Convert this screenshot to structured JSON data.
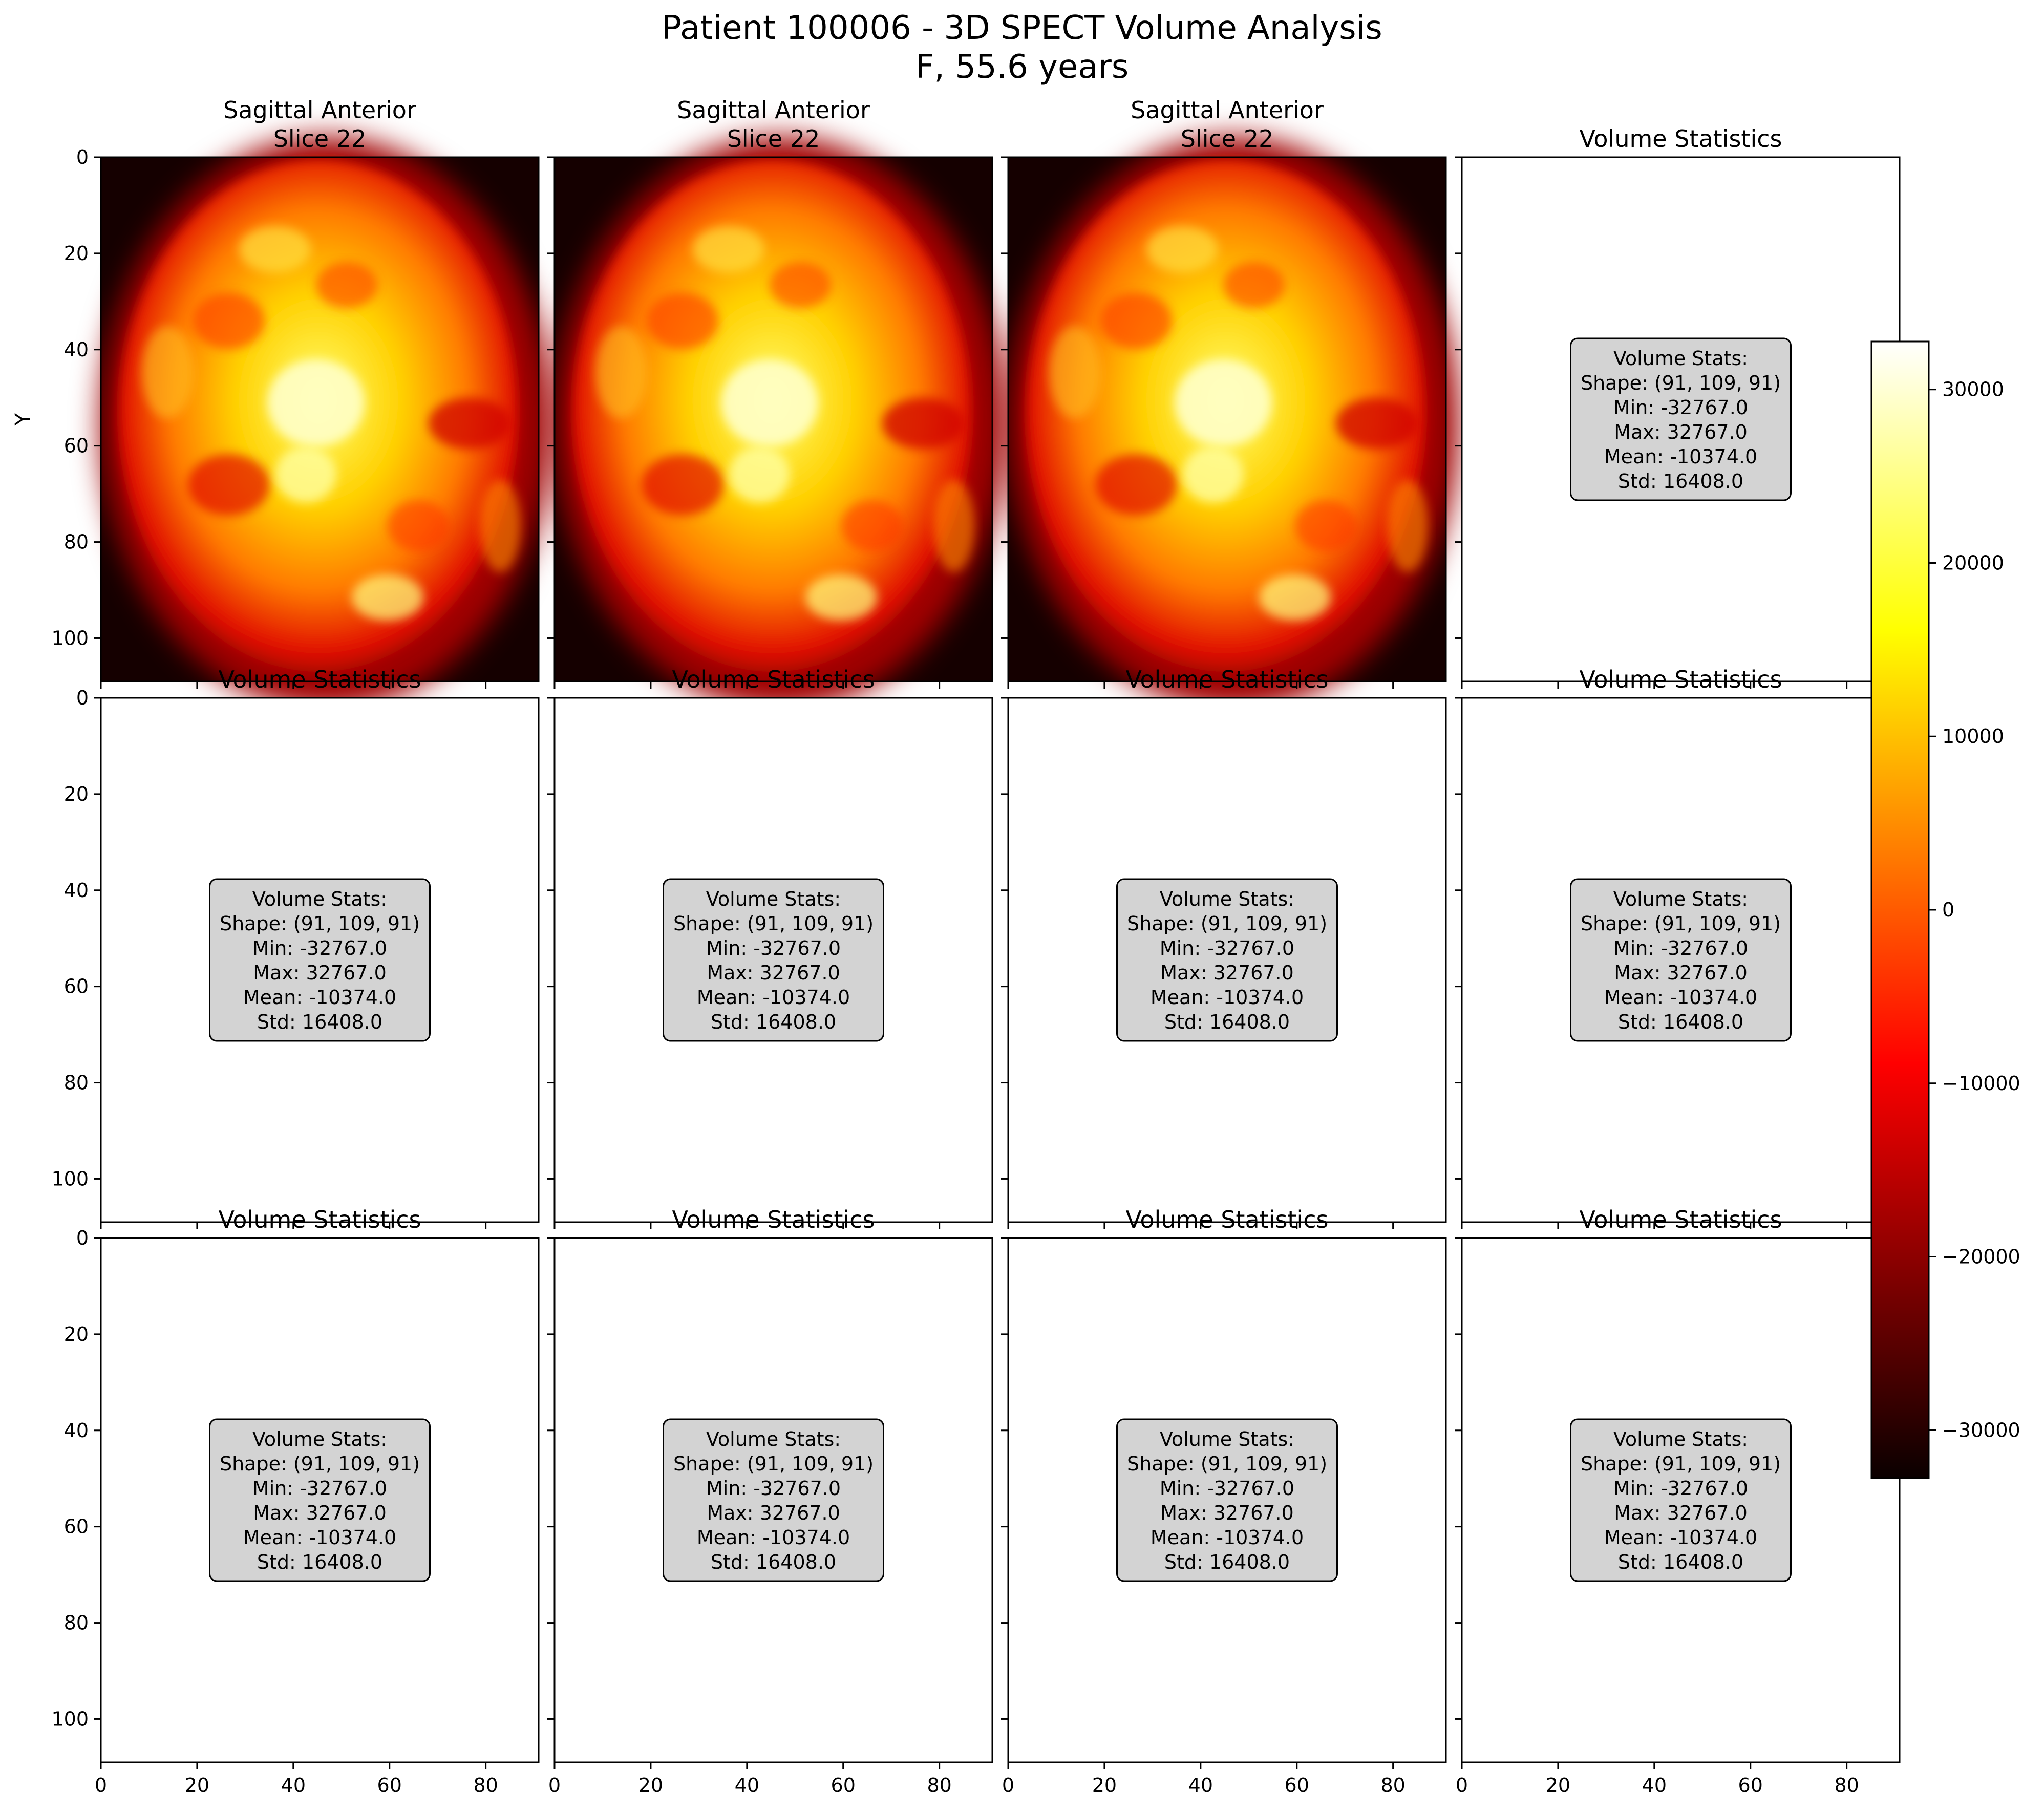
{
  "figure": {
    "title_line1": "Patient 100006 - 3D SPECT Volume Analysis",
    "title_line2": "F, 55.6 years",
    "colormap": "hot",
    "background": "#ffffff"
  },
  "chart_data": {
    "type": "heatmap",
    "layout": "3 rows x 4 columns of image panels with shared colorbar",
    "x_ticks": [
      0,
      20,
      40,
      60,
      80
    ],
    "y_ticks": [
      0,
      20,
      40,
      60,
      80,
      100
    ],
    "x_range": [
      0,
      91
    ],
    "y_range": [
      109,
      0
    ],
    "ylabel": "Y",
    "panels": [
      {
        "row": 0,
        "col": 0,
        "kind": "image",
        "title_lines": [
          "Sagittal Anterior",
          "Slice 22"
        ]
      },
      {
        "row": 0,
        "col": 1,
        "kind": "image",
        "title_lines": [
          "Sagittal Anterior",
          "Slice 22"
        ]
      },
      {
        "row": 0,
        "col": 2,
        "kind": "image",
        "title_lines": [
          "Sagittal Anterior",
          "Slice 22"
        ]
      },
      {
        "row": 0,
        "col": 3,
        "kind": "stats",
        "title_lines": [
          "Volume Statistics"
        ]
      },
      {
        "row": 1,
        "col": 0,
        "kind": "stats",
        "title_lines": [
          "Volume Statistics"
        ]
      },
      {
        "row": 1,
        "col": 1,
        "kind": "stats",
        "title_lines": [
          "Volume Statistics"
        ]
      },
      {
        "row": 1,
        "col": 2,
        "kind": "stats",
        "title_lines": [
          "Volume Statistics"
        ]
      },
      {
        "row": 1,
        "col": 3,
        "kind": "stats",
        "title_lines": [
          "Volume Statistics"
        ]
      },
      {
        "row": 2,
        "col": 0,
        "kind": "stats",
        "title_lines": [
          "Volume Statistics"
        ]
      },
      {
        "row": 2,
        "col": 1,
        "kind": "stats",
        "title_lines": [
          "Volume Statistics"
        ]
      },
      {
        "row": 2,
        "col": 2,
        "kind": "stats",
        "title_lines": [
          "Volume Statistics"
        ]
      },
      {
        "row": 2,
        "col": 3,
        "kind": "stats",
        "title_lines": [
          "Volume Statistics"
        ]
      }
    ],
    "stats_box": {
      "lines": [
        "Volume Stats:",
        "Shape: (91, 109, 91)",
        "Min: -32767.0",
        "Max: 32767.0",
        "Mean: -10374.0",
        "Std: 16408.0"
      ],
      "fill": "#d3d3d3"
    },
    "colorbar": {
      "range": [
        -32767,
        32767
      ],
      "ticks": [
        30000,
        20000,
        10000,
        0,
        -10000,
        -20000,
        -30000
      ],
      "tick_labels": [
        "30000",
        "20000",
        "10000",
        "0",
        "−10000",
        "−20000",
        "−30000"
      ]
    }
  }
}
